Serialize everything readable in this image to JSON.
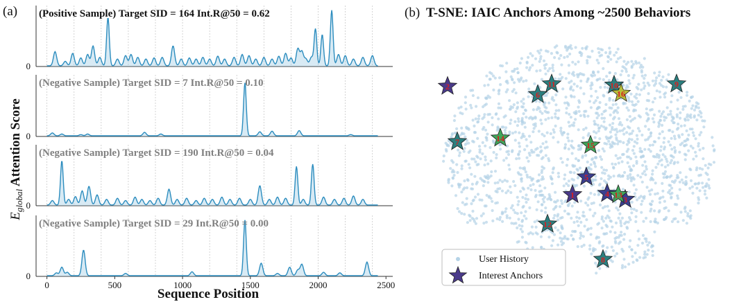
{
  "panels": {
    "left": {
      "tag": "(a)",
      "ylabel_main": "E",
      "ylabel_sub": "global",
      "ylabel_rest": " Attention Score",
      "xlabel": "Sequence Position",
      "zero_label": "0"
    },
    "right": {
      "tag": "(b)",
      "title": "T-SNE: IAIC Anchors Among ~2500 Behaviors",
      "legend": [
        "User History",
        "Interest Anchors"
      ]
    }
  },
  "colors": {
    "line": "#2b8cbe",
    "fill": "#8ec3e0",
    "grid": "#c8c8c8",
    "dots": "#b5d3e7",
    "star_teal": "#2b7f7f",
    "star_navy": "#3a3f8f",
    "star_purple": "#4a3a8a",
    "star_olive": "#b8bf3a",
    "star_green": "#3fa65a",
    "label_red": "#d62020"
  },
  "chart_data": [
    {
      "type": "line",
      "xlabel": "Sequence Position",
      "ylabel": "E_global Attention Score",
      "xlim": [
        -80,
        2550
      ],
      "xticks": [
        0,
        500,
        1000,
        1500,
        2000,
        2500
      ],
      "yticks": [
        0
      ],
      "grid_x": [
        0,
        200,
        400,
        600,
        800,
        1000,
        1200,
        1400,
        1600,
        1800,
        2000,
        2200,
        2400
      ],
      "subplots": [
        {
          "title": "(Positive Sample) Target SID = 164   Int.R@50 = 0.62",
          "title_color": "#111111",
          "peaks": [
            [
              60,
              0.25
            ],
            [
              135,
              0.08
            ],
            [
              190,
              0.22
            ],
            [
              250,
              0.14
            ],
            [
              300,
              0.2
            ],
            [
              340,
              0.35
            ],
            [
              390,
              0.15
            ],
            [
              450,
              0.85
            ],
            [
              520,
              0.12
            ],
            [
              580,
              0.18
            ],
            [
              620,
              0.2
            ],
            [
              670,
              0.15
            ],
            [
              730,
              0.12
            ],
            [
              790,
              0.14
            ],
            [
              850,
              0.15
            ],
            [
              930,
              0.35
            ],
            [
              990,
              0.12
            ],
            [
              1050,
              0.14
            ],
            [
              1100,
              0.12
            ],
            [
              1150,
              0.15
            ],
            [
              1200,
              0.12
            ],
            [
              1260,
              0.17
            ],
            [
              1310,
              0.12
            ],
            [
              1380,
              0.15
            ],
            [
              1440,
              0.2
            ],
            [
              1490,
              0.18
            ],
            [
              1540,
              0.12
            ],
            [
              1600,
              0.15
            ],
            [
              1660,
              0.12
            ],
            [
              1710,
              0.17
            ],
            [
              1760,
              0.22
            ],
            [
              1800,
              0.14
            ],
            [
              1850,
              0.3
            ],
            [
              1880,
              0.25
            ],
            [
              1910,
              0.12
            ],
            [
              1950,
              0.15
            ],
            [
              1980,
              0.65
            ],
            [
              2030,
              0.55
            ],
            [
              2100,
              0.98
            ],
            [
              2150,
              0.2
            ],
            [
              2200,
              0.18
            ],
            [
              2260,
              0.12
            ],
            [
              2330,
              0.15
            ],
            [
              2400,
              0.18
            ]
          ],
          "ymax": 1.0
        },
        {
          "title": "(Negative Sample) Target SID = 7    Int.R@50 = 0.10",
          "title_color": "#808080",
          "peaks": [
            [
              40,
              0.05
            ],
            [
              110,
              0.03
            ],
            [
              250,
              0.02
            ],
            [
              300,
              0.03
            ],
            [
              720,
              0.06
            ],
            [
              840,
              0.03
            ],
            [
              1460,
              0.92
            ],
            [
              1570,
              0.07
            ],
            [
              1660,
              0.08
            ],
            [
              1860,
              0.09
            ],
            [
              2240,
              0.02
            ]
          ],
          "ymax": 1.0
        },
        {
          "title": "(Negative Sample) Target SID = 190   Int.R@50 = 0.04",
          "title_color": "#808080",
          "peaks": [
            [
              40,
              0.08
            ],
            [
              110,
              0.78
            ],
            [
              160,
              0.1
            ],
            [
              210,
              0.15
            ],
            [
              260,
              0.25
            ],
            [
              310,
              0.33
            ],
            [
              370,
              0.18
            ],
            [
              440,
              0.1
            ],
            [
              520,
              0.12
            ],
            [
              580,
              0.08
            ],
            [
              650,
              0.14
            ],
            [
              700,
              0.1
            ],
            [
              760,
              0.08
            ],
            [
              820,
              0.12
            ],
            [
              900,
              0.28
            ],
            [
              960,
              0.1
            ],
            [
              1030,
              0.12
            ],
            [
              1100,
              0.08
            ],
            [
              1160,
              0.12
            ],
            [
              1220,
              0.1
            ],
            [
              1290,
              0.14
            ],
            [
              1350,
              0.1
            ],
            [
              1420,
              0.12
            ],
            [
              1500,
              0.1
            ],
            [
              1570,
              0.34
            ],
            [
              1640,
              0.1
            ],
            [
              1700,
              0.14
            ],
            [
              1760,
              0.12
            ],
            [
              1840,
              0.68
            ],
            [
              1890,
              0.1
            ],
            [
              1960,
              0.72
            ],
            [
              2040,
              0.14
            ],
            [
              2120,
              0.1
            ],
            [
              2190,
              0.12
            ],
            [
              2260,
              0.16
            ],
            [
              2330,
              0.1
            ]
          ],
          "ymax": 1.0
        },
        {
          "title": "(Negative Sample) Target SID = 29   Int.R@50 = 0.00",
          "title_color": "#808080",
          "peaks": [
            [
              70,
              0.05
            ],
            [
              110,
              0.15
            ],
            [
              150,
              0.06
            ],
            [
              270,
              0.45
            ],
            [
              580,
              0.04
            ],
            [
              1070,
              0.07
            ],
            [
              1460,
              0.98
            ],
            [
              1580,
              0.22
            ],
            [
              1700,
              0.04
            ],
            [
              1790,
              0.15
            ],
            [
              1850,
              0.1
            ],
            [
              1880,
              0.2
            ],
            [
              2040,
              0.06
            ],
            [
              2160,
              0.05
            ],
            [
              2360,
              0.24
            ]
          ],
          "ymax": 1.0
        }
      ]
    },
    {
      "type": "scatter",
      "title": "T-SNE: IAIC Anchors Among ~2500 Behaviors",
      "series": [
        {
          "name": "User History",
          "count": 2500
        },
        {
          "name": "Interest Anchors",
          "points": [
            {
              "label": "1",
              "x": -0.05,
              "y": -0.3,
              "color": "star_purple"
            },
            {
              "label": "2",
              "x": -0.95,
              "y": 0.62,
              "color": "star_purple"
            },
            {
              "label": "3",
              "x": 0.33,
              "y": -0.34,
              "color": "star_navy"
            },
            {
              "label": "4",
              "x": 0.2,
              "y": -0.29,
              "color": "star_navy"
            },
            {
              "label": "5",
              "x": 0.05,
              "y": -0.15,
              "color": "star_navy"
            },
            {
              "label": "6",
              "x": -0.3,
              "y": 0.55,
              "color": "star_teal"
            },
            {
              "label": "7",
              "x": -0.88,
              "y": 0.15,
              "color": "star_teal"
            },
            {
              "label": "8",
              "x": 0.17,
              "y": -0.85,
              "color": "star_teal"
            },
            {
              "label": "9",
              "x": 0.7,
              "y": 0.64,
              "color": "star_teal"
            },
            {
              "label": "10",
              "x": 0.25,
              "y": 0.63,
              "color": "star_teal"
            },
            {
              "label": "11",
              "x": -0.2,
              "y": 0.64,
              "color": "star_teal"
            },
            {
              "label": "12",
              "x": -0.23,
              "y": -0.55,
              "color": "star_teal"
            },
            {
              "label": "13",
              "x": 0.28,
              "y": -0.3,
              "color": "star_green"
            },
            {
              "label": "14",
              "x": -0.57,
              "y": 0.18,
              "color": "star_green"
            },
            {
              "label": "15",
              "x": 0.08,
              "y": 0.12,
              "color": "star_green"
            },
            {
              "label": "16",
              "x": 0.3,
              "y": 0.56,
              "color": "star_olive"
            }
          ]
        }
      ],
      "legend_position": "lower-left"
    }
  ]
}
